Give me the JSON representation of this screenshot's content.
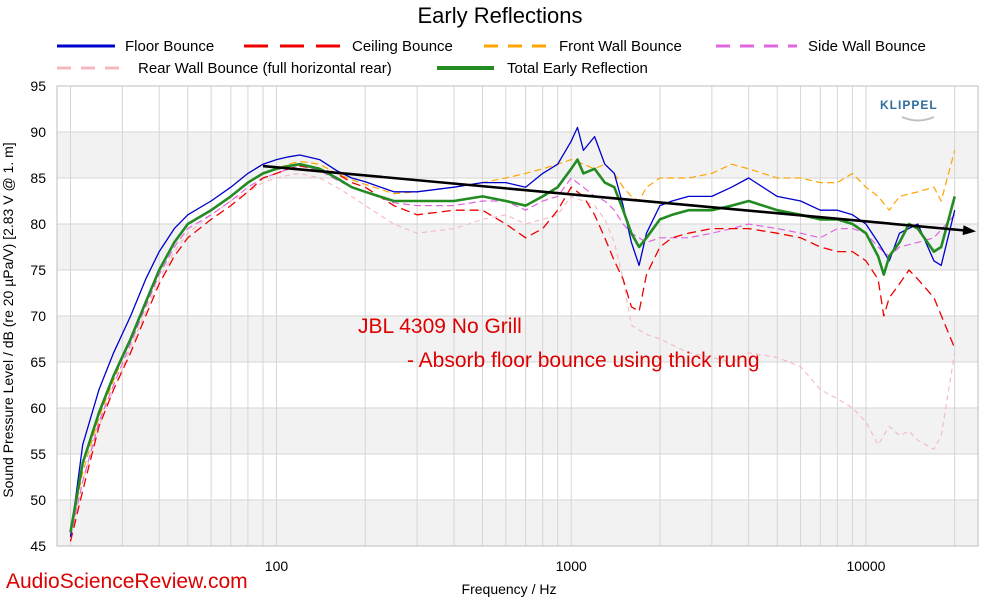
{
  "chart_data": {
    "type": "line",
    "title": "Early Reflections",
    "xlabel": "Frequency / Hz",
    "ylabel": "Sound Pressure Level / dB (re 20 µPa/V)  [2.83  V @ 1. m]",
    "xscale": "log",
    "xlim": [
      18,
      24000
    ],
    "ylim": [
      45,
      95
    ],
    "xticks": [
      100,
      1000,
      10000
    ],
    "yticks": [
      45,
      50,
      55,
      60,
      65,
      70,
      75,
      80,
      85,
      90,
      95
    ],
    "grid": true,
    "legend": "top",
    "series": [
      {
        "name": "Floor Bounce",
        "color": "#0000cc",
        "style": "solid",
        "width": 1.3,
        "x": [
          20,
          22,
          25,
          28,
          32,
          36,
          40,
          45,
          50,
          60,
          70,
          80,
          90,
          100,
          110,
          120,
          140,
          160,
          180,
          200,
          250,
          300,
          400,
          500,
          600,
          700,
          800,
          900,
          1000,
          1050,
          1100,
          1200,
          1300,
          1400,
          1500,
          1600,
          1700,
          1800,
          2000,
          2200,
          2500,
          3000,
          3500,
          4000,
          5000,
          6000,
          7000,
          8000,
          9000,
          10000,
          11000,
          12000,
          13000,
          15000,
          17000,
          18000,
          20000
        ],
        "y": [
          46,
          56,
          62,
          66,
          70,
          74,
          77,
          79.5,
          81,
          82.5,
          84,
          85.5,
          86.5,
          87,
          87.3,
          87.5,
          87,
          85.8,
          85,
          84.6,
          83.5,
          83.5,
          84,
          84.5,
          84.5,
          84,
          85.5,
          86.5,
          89,
          90.5,
          88,
          89.5,
          86.5,
          85.5,
          82,
          78,
          75.5,
          79,
          82,
          82.5,
          83,
          83,
          84,
          85,
          83,
          82.5,
          81.5,
          81.5,
          81,
          80,
          78,
          76,
          79,
          80,
          76,
          75.5,
          81.5
        ]
      },
      {
        "name": "Ceiling Bounce",
        "color": "#ee0000",
        "style": "dashed",
        "width": 1.3,
        "x": [
          20,
          22,
          25,
          28,
          32,
          36,
          40,
          45,
          50,
          60,
          70,
          80,
          90,
          100,
          110,
          120,
          140,
          160,
          180,
          200,
          250,
          300,
          400,
          500,
          600,
          700,
          800,
          900,
          1000,
          1100,
          1200,
          1300,
          1400,
          1500,
          1600,
          1700,
          1800,
          2000,
          2200,
          2500,
          3000,
          3500,
          4000,
          5000,
          6000,
          7000,
          8000,
          9000,
          10000,
          11000,
          11500,
          12000,
          13000,
          14000,
          15000,
          17000,
          20000
        ],
        "y": [
          45.5,
          51,
          58,
          62,
          66,
          70,
          73.5,
          76.5,
          78.5,
          80.5,
          82,
          83.5,
          85,
          85.5,
          86,
          86.3,
          86,
          85.5,
          84.5,
          84,
          82,
          81,
          81.5,
          81.5,
          80,
          78.5,
          79.5,
          81.5,
          84,
          83,
          81,
          78.5,
          76,
          74,
          71,
          70.5,
          74.5,
          77.5,
          78.5,
          79,
          79.5,
          79.5,
          79.5,
          79,
          78.5,
          77.5,
          77,
          77,
          76,
          74,
          70,
          72,
          73.5,
          75,
          74,
          72,
          66.5
        ]
      },
      {
        "name": "Front Wall Bounce",
        "color": "#ffa500",
        "style": "dashed",
        "width": 1.2,
        "x": [
          20,
          22,
          25,
          28,
          32,
          36,
          40,
          45,
          50,
          60,
          70,
          80,
          90,
          100,
          110,
          120,
          140,
          160,
          180,
          200,
          250,
          300,
          400,
          500,
          600,
          700,
          800,
          900,
          1000,
          1100,
          1200,
          1300,
          1400,
          1500,
          1600,
          1700,
          1800,
          2000,
          2200,
          2500,
          3000,
          3500,
          4000,
          5000,
          6000,
          7000,
          8000,
          9000,
          10000,
          11000,
          12000,
          13000,
          15000,
          17000,
          18000,
          20000
        ],
        "y": [
          46.5,
          53,
          59,
          63,
          67.5,
          71.5,
          75,
          78,
          80,
          81.5,
          83,
          84.5,
          85.5,
          86,
          86.5,
          86.8,
          86.5,
          85.5,
          84.8,
          84.3,
          83.3,
          83.5,
          84,
          84.5,
          85,
          85.5,
          86,
          86.5,
          87,
          86.5,
          86,
          86.5,
          85.5,
          84,
          83,
          82.5,
          84,
          85,
          85,
          85,
          85.5,
          86.5,
          86,
          85,
          85,
          84.5,
          84.5,
          85.5,
          84,
          83,
          81.5,
          83,
          83.5,
          84,
          82.5,
          88
        ]
      },
      {
        "name": "Side Wall Bounce",
        "color": "#e066e0",
        "style": "dashed",
        "width": 1.2,
        "x": [
          20,
          22,
          25,
          28,
          32,
          36,
          40,
          45,
          50,
          60,
          70,
          80,
          90,
          100,
          110,
          120,
          140,
          160,
          180,
          200,
          250,
          300,
          400,
          500,
          600,
          700,
          800,
          900,
          1000,
          1100,
          1200,
          1300,
          1400,
          1500,
          1600,
          1700,
          1800,
          2000,
          2200,
          2500,
          3000,
          3500,
          4000,
          5000,
          6000,
          7000,
          8000,
          9000,
          10000,
          11000,
          12000,
          13000,
          15000,
          17000,
          20000
        ],
        "y": [
          46,
          52,
          58.5,
          62.5,
          67,
          71,
          74.5,
          77.5,
          79.5,
          81,
          82.5,
          84,
          85,
          85.5,
          86,
          86.3,
          85.8,
          84.8,
          84,
          83.5,
          82.3,
          82,
          82,
          82.5,
          82.5,
          81.5,
          82.5,
          83,
          85,
          84,
          83,
          82.5,
          81.5,
          80,
          79,
          78.5,
          78,
          78.5,
          78.5,
          78.5,
          79,
          79.5,
          80,
          79.5,
          79,
          78.5,
          79.5,
          79.5,
          79,
          77.5,
          76.5,
          77.5,
          78,
          78.5,
          81
        ]
      },
      {
        "name": "Rear Wall Bounce (full horizontal rear)",
        "color": "#f4b8c0",
        "style": "dashed",
        "width": 1.1,
        "x": [
          20,
          22,
          25,
          28,
          32,
          36,
          40,
          45,
          50,
          60,
          70,
          80,
          90,
          100,
          110,
          120,
          140,
          160,
          180,
          200,
          250,
          300,
          400,
          500,
          600,
          700,
          800,
          900,
          1000,
          1100,
          1200,
          1300,
          1400,
          1500,
          1600,
          1800,
          2000,
          2500,
          3000,
          3500,
          4000,
          5000,
          6000,
          7000,
          8000,
          9000,
          10000,
          11000,
          12000,
          13000,
          14000,
          15000,
          17000,
          18000,
          20000
        ],
        "y": [
          46,
          52,
          58,
          62,
          66.5,
          70.5,
          74,
          77,
          79,
          81,
          82.5,
          83.5,
          84.5,
          85,
          85.3,
          85.5,
          85,
          84,
          83,
          82,
          80,
          79,
          79.5,
          80.5,
          81,
          80,
          80.5,
          81,
          83,
          82.5,
          82,
          80.5,
          78,
          74,
          69,
          68,
          67.5,
          66,
          65.5,
          65,
          66,
          65.5,
          64.5,
          62,
          61,
          60,
          58.5,
          56,
          58,
          57,
          57.5,
          56.5,
          55.5,
          57,
          66
        ]
      },
      {
        "name": "Total Early Reflection",
        "color": "#228b22",
        "style": "solid",
        "width": 2.6,
        "x": [
          20,
          22,
          25,
          28,
          32,
          36,
          40,
          45,
          50,
          60,
          70,
          80,
          90,
          100,
          110,
          120,
          140,
          160,
          180,
          200,
          250,
          300,
          400,
          500,
          600,
          700,
          800,
          900,
          1000,
          1050,
          1100,
          1200,
          1300,
          1400,
          1500,
          1600,
          1700,
          1800,
          2000,
          2200,
          2500,
          3000,
          3500,
          4000,
          5000,
          6000,
          7000,
          8000,
          9000,
          10000,
          11000,
          11500,
          12000,
          13000,
          14000,
          15000,
          17000,
          18000,
          20000
        ],
        "y": [
          46.5,
          54,
          59.5,
          63.5,
          67.5,
          71.5,
          75,
          78,
          80,
          81.5,
          83,
          84.5,
          85.5,
          86,
          86.3,
          86.5,
          86,
          85,
          84,
          83.5,
          82.5,
          82.5,
          82.5,
          83,
          82.5,
          82,
          83,
          84,
          86,
          87,
          85.5,
          86,
          84.5,
          84,
          81.5,
          79,
          77.5,
          78.5,
          80.5,
          81,
          81.5,
          81.5,
          82,
          82.5,
          81.5,
          81,
          80.5,
          80.5,
          80,
          79,
          76.5,
          74.5,
          76.5,
          78,
          80,
          79.5,
          77,
          77.5,
          83
        ]
      }
    ],
    "annotations": [
      {
        "text": "JBL 4309 No Grill",
        "color": "#dd0000"
      },
      {
        "text": "- Absorb floor bounce using thick rung",
        "color": "#dd0000"
      }
    ],
    "trend_arrow": {
      "x1": 90,
      "y1": 86.3,
      "x2": 24000,
      "y2": 79.2,
      "color": "#000000"
    }
  },
  "logo_text": "KLIPPEL",
  "watermark": "AudioScienceReview.com"
}
